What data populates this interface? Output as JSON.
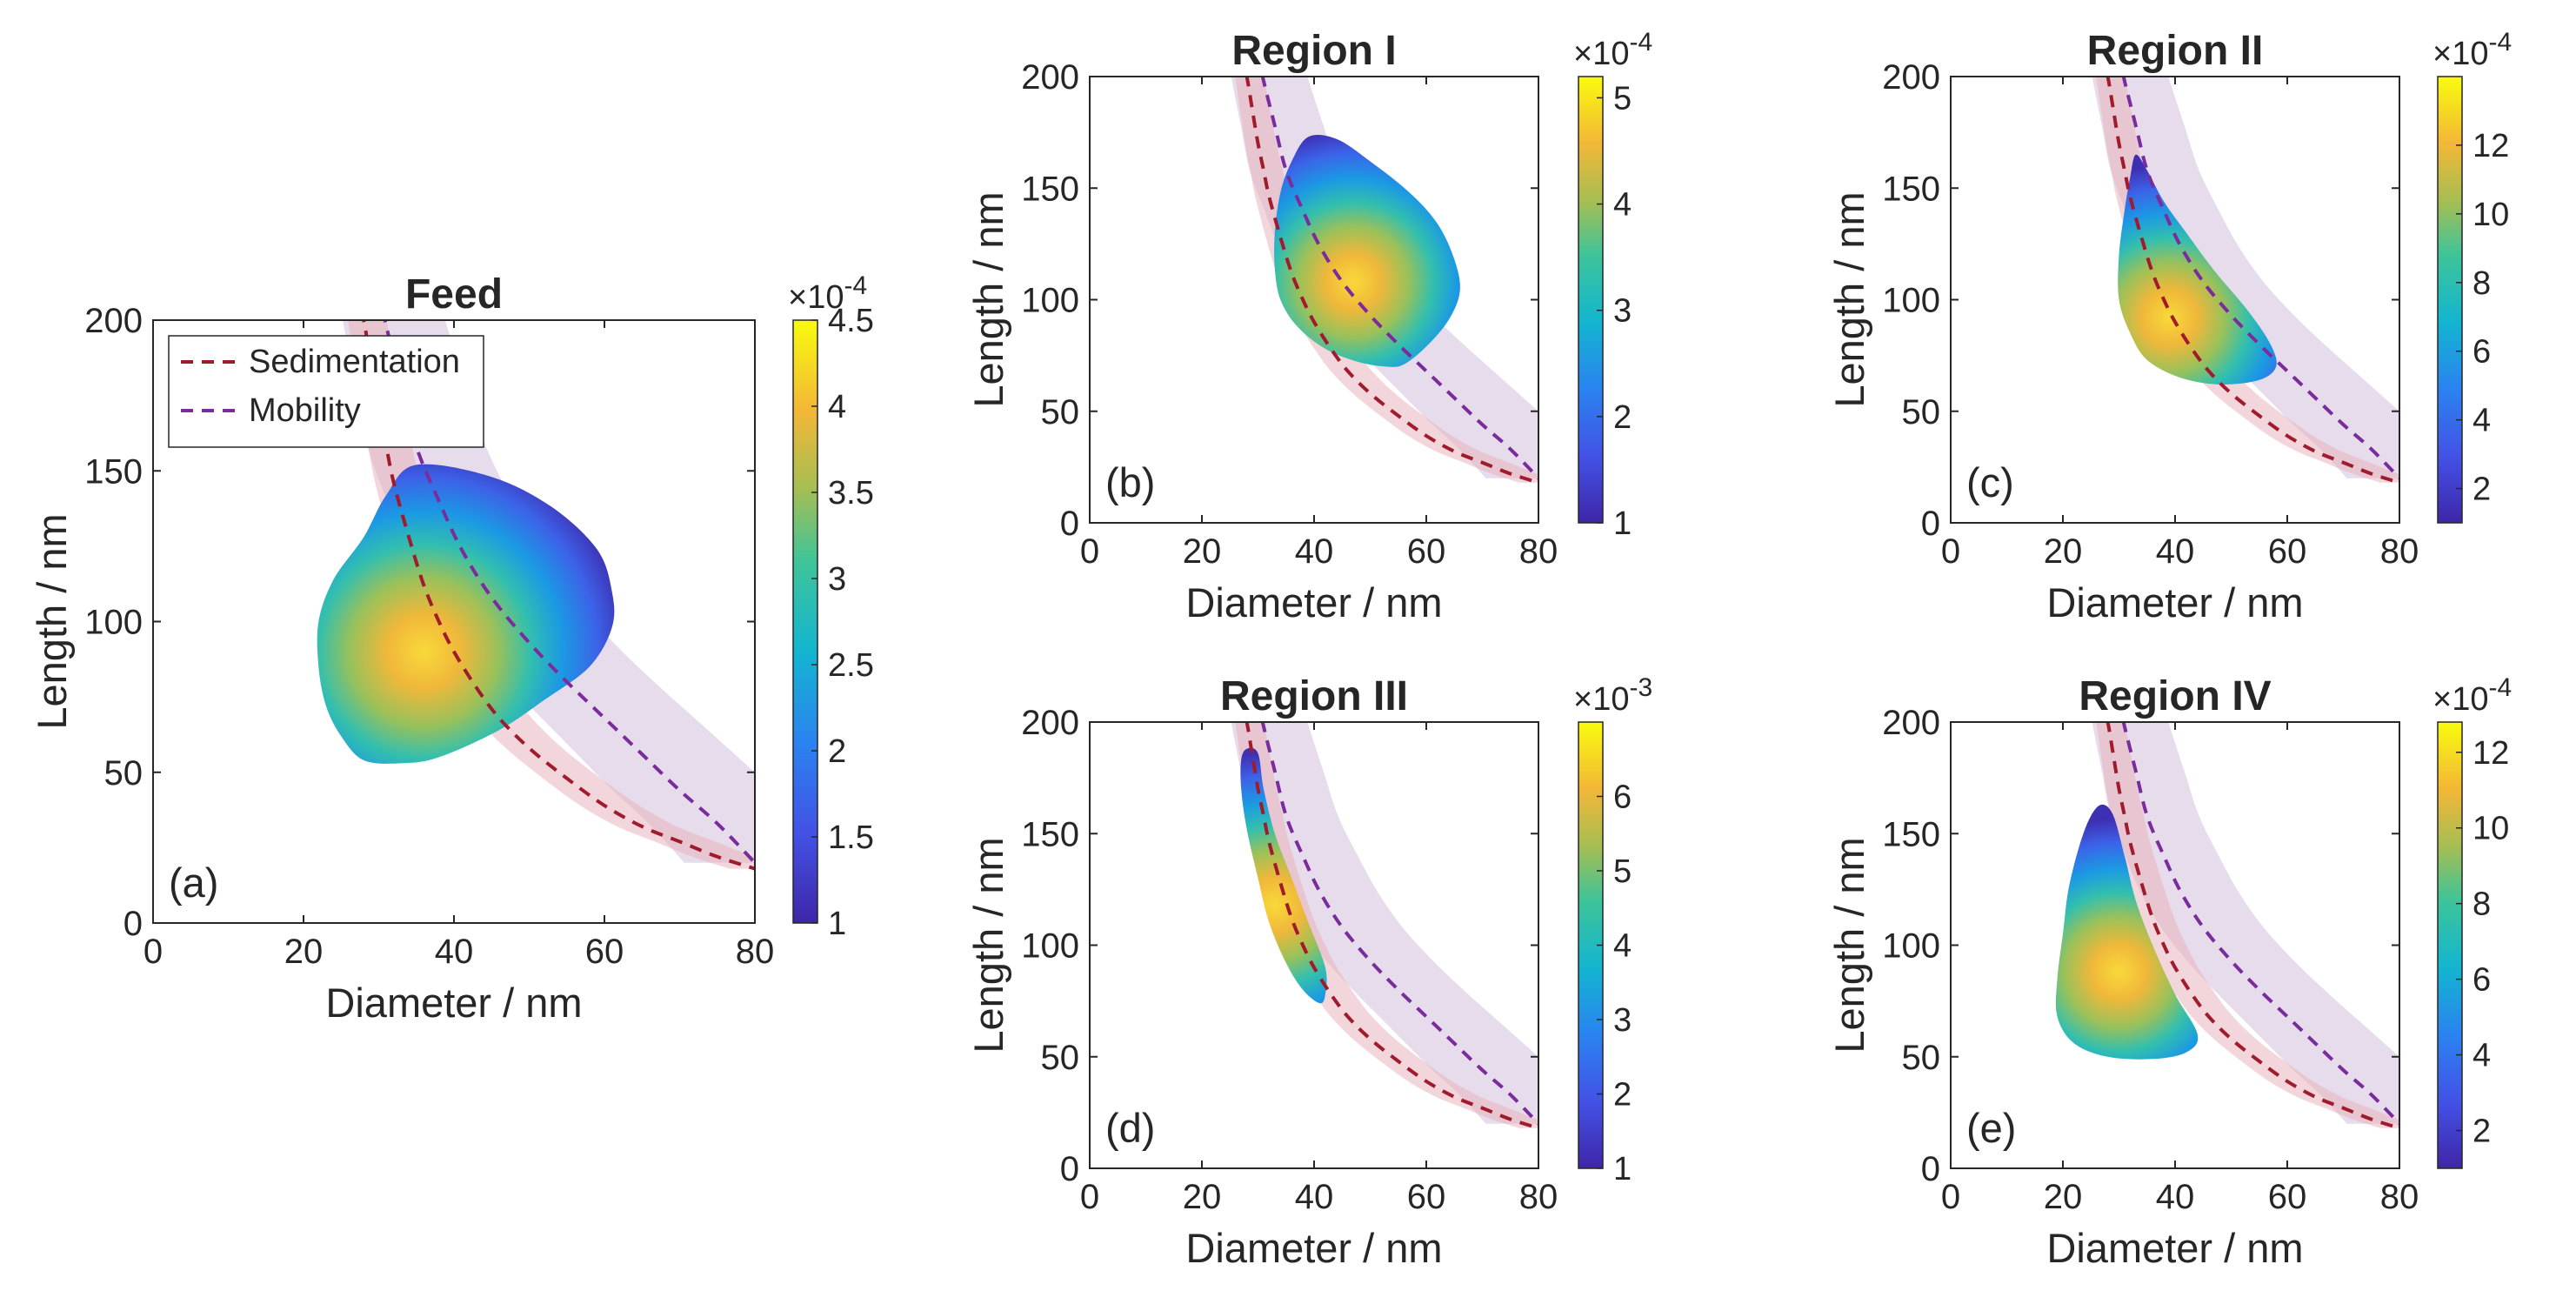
{
  "chart_data": [
    {
      "type": "heatmap",
      "id": "feed",
      "title": "Feed",
      "panel_label": "(a)",
      "xlabel": "Diameter / nm",
      "ylabel": "Length / nm",
      "xlim": [
        0,
        80
      ],
      "ylim": [
        0,
        200
      ],
      "xticks": [
        "0",
        "20",
        "40",
        "60",
        "80"
      ],
      "yticks": [
        "0",
        "50",
        "100",
        "150",
        "200"
      ],
      "colorbar": {
        "min": 1,
        "max": 4.5,
        "multiplier": "×10",
        "exponent": "-4",
        "ticks": [
          "1",
          "1.5",
          "2",
          "2.5",
          "3",
          "3.5",
          "4",
          "4.5"
        ]
      },
      "density": {
        "center": [
          36,
          90
        ],
        "peak": 4.5,
        "outline": [
          [
            35,
            152
          ],
          [
            45,
            148
          ],
          [
            53,
            138
          ],
          [
            59,
            124
          ],
          [
            61,
            110
          ],
          [
            61,
            98
          ],
          [
            58,
            85
          ],
          [
            52,
            74
          ],
          [
            46,
            64
          ],
          [
            38,
            55
          ],
          [
            33,
            53
          ],
          [
            28,
            54
          ],
          [
            25,
            62
          ],
          [
            23,
            72
          ],
          [
            22,
            85
          ],
          [
            22,
            100
          ],
          [
            24,
            114
          ],
          [
            28,
            128
          ],
          [
            31,
            142
          ]
        ]
      },
      "legend": [
        {
          "label": "Sedimentation",
          "color": "#a01b2c"
        },
        {
          "label": "Mobility",
          "color": "#7a2c9c"
        }
      ]
    },
    {
      "type": "heatmap",
      "id": "region1",
      "title": "Region I",
      "panel_label": "(b)",
      "xlabel": "Diameter / nm",
      "ylabel": "Length / nm",
      "xlim": [
        0,
        80
      ],
      "ylim": [
        0,
        200
      ],
      "xticks": [
        "0",
        "20",
        "40",
        "60",
        "80"
      ],
      "yticks": [
        "0",
        "50",
        "100",
        "150",
        "200"
      ],
      "colorbar": {
        "min": 1,
        "max": 5.2,
        "multiplier": "×10",
        "exponent": "-4",
        "ticks": [
          "1",
          "2",
          "3",
          "4",
          "5"
        ]
      },
      "density": {
        "center": [
          47,
          108
        ],
        "peak": 5.2,
        "outline": [
          [
            39,
            173
          ],
          [
            44,
            172
          ],
          [
            50,
            162
          ],
          [
            57,
            148
          ],
          [
            62,
            134
          ],
          [
            65,
            118
          ],
          [
            66,
            104
          ],
          [
            64,
            91
          ],
          [
            60,
            79
          ],
          [
            56,
            71
          ],
          [
            53,
            70
          ],
          [
            48,
            72
          ],
          [
            42,
            78
          ],
          [
            37,
            88
          ],
          [
            34,
            100
          ],
          [
            33,
            114
          ],
          [
            33,
            130
          ],
          [
            34,
            148
          ],
          [
            36,
            162
          ]
        ]
      }
    },
    {
      "type": "heatmap",
      "id": "region2",
      "title": "Region II",
      "panel_label": "(c)",
      "xlabel": "Diameter / nm",
      "ylabel": "Length / nm",
      "xlim": [
        0,
        80
      ],
      "ylim": [
        0,
        200
      ],
      "xticks": [
        "0",
        "20",
        "40",
        "60",
        "80"
      ],
      "yticks": [
        "0",
        "50",
        "100",
        "150",
        "200"
      ],
      "colorbar": {
        "min": 1,
        "max": 14,
        "multiplier": "×10",
        "exponent": "-4",
        "ticks": [
          "2",
          "4",
          "6",
          "8",
          "10",
          "12"
        ]
      },
      "density": {
        "center": [
          39,
          92
        ],
        "peak": 14,
        "outline": [
          [
            33,
            165
          ],
          [
            35,
            158
          ],
          [
            38,
            144
          ],
          [
            42,
            130
          ],
          [
            47,
            113
          ],
          [
            53,
            95
          ],
          [
            57,
            80
          ],
          [
            58,
            70
          ],
          [
            55,
            64
          ],
          [
            48,
            62
          ],
          [
            41,
            65
          ],
          [
            35,
            73
          ],
          [
            32,
            85
          ],
          [
            30,
            100
          ],
          [
            30,
            120
          ],
          [
            31,
            140
          ],
          [
            32,
            155
          ]
        ]
      }
    },
    {
      "type": "heatmap",
      "id": "region3",
      "title": "Region III",
      "panel_label": "(d)",
      "xlabel": "Diameter / nm",
      "ylabel": "Length / nm",
      "xlim": [
        0,
        80
      ],
      "ylim": [
        0,
        200
      ],
      "xticks": [
        "0",
        "20",
        "40",
        "60",
        "80"
      ],
      "yticks": [
        "0",
        "50",
        "100",
        "150",
        "200"
      ],
      "colorbar": {
        "min": 1,
        "max": 7,
        "multiplier": "×10",
        "exponent": "-3",
        "ticks": [
          "1",
          "2",
          "3",
          "4",
          "5",
          "6"
        ]
      },
      "density": {
        "center": [
          33,
          118
        ],
        "peak": 7,
        "outline": [
          [
            28,
            188
          ],
          [
            30,
            186
          ],
          [
            31,
            170
          ],
          [
            33,
            150
          ],
          [
            36,
            130
          ],
          [
            39,
            110
          ],
          [
            42,
            90
          ],
          [
            42,
            78
          ],
          [
            41,
            74
          ],
          [
            38,
            80
          ],
          [
            35,
            92
          ],
          [
            32,
            110
          ],
          [
            30,
            130
          ],
          [
            28,
            152
          ],
          [
            27,
            170
          ],
          [
            27,
            183
          ]
        ]
      }
    },
    {
      "type": "heatmap",
      "id": "region4",
      "title": "Region IV",
      "panel_label": "(e)",
      "xlabel": "Diameter / nm",
      "ylabel": "Length / nm",
      "xlim": [
        0,
        80
      ],
      "ylim": [
        0,
        200
      ],
      "xticks": [
        "0",
        "20",
        "40",
        "60",
        "80"
      ],
      "yticks": [
        "0",
        "50",
        "100",
        "150",
        "200"
      ],
      "colorbar": {
        "min": 1,
        "max": 12.8,
        "multiplier": "×10",
        "exponent": "-4",
        "ticks": [
          "2",
          "4",
          "6",
          "8",
          "10",
          "12"
        ]
      },
      "density": {
        "center": [
          30,
          88
        ],
        "peak": 12.8,
        "outline": [
          [
            27,
            163
          ],
          [
            29,
            158
          ],
          [
            31,
            140
          ],
          [
            33,
            120
          ],
          [
            36,
            100
          ],
          [
            40,
            78
          ],
          [
            44,
            60
          ],
          [
            42,
            52
          ],
          [
            36,
            49
          ],
          [
            28,
            50
          ],
          [
            22,
            56
          ],
          [
            19,
            68
          ],
          [
            19,
            85
          ],
          [
            20,
            105
          ],
          [
            21,
            125
          ],
          [
            23,
            145
          ],
          [
            25,
            158
          ]
        ]
      }
    }
  ],
  "curves": {
    "sedimentation": {
      "label": "Sedimentation",
      "color": "#a01b2c",
      "band_color": "#e8b4bd",
      "points": [
        [
          27,
          210
        ],
        [
          28,
          200
        ],
        [
          29,
          185
        ],
        [
          30,
          170
        ],
        [
          31,
          158
        ],
        [
          32,
          146
        ],
        [
          34,
          128
        ],
        [
          36,
          112
        ],
        [
          38,
          100
        ],
        [
          40,
          90
        ],
        [
          43,
          78
        ],
        [
          46,
          68
        ],
        [
          50,
          58
        ],
        [
          55,
          48
        ],
        [
          60,
          39
        ],
        [
          65,
          32
        ],
        [
          70,
          27
        ],
        [
          75,
          22
        ],
        [
          80,
          18
        ]
      ]
    },
    "mobility": {
      "label": "Mobility",
      "color": "#7a2c9c",
      "band_color": "#d4bfdd",
      "points": [
        [
          30,
          210
        ],
        [
          31,
          198
        ],
        [
          33,
          178
        ],
        [
          35,
          158
        ],
        [
          38,
          140
        ],
        [
          41,
          124
        ],
        [
          45,
          108
        ],
        [
          50,
          93
        ],
        [
          55,
          80
        ],
        [
          60,
          68
        ],
        [
          65,
          56
        ],
        [
          70,
          44
        ],
        [
          75,
          33
        ],
        [
          80,
          20
        ]
      ]
    }
  }
}
